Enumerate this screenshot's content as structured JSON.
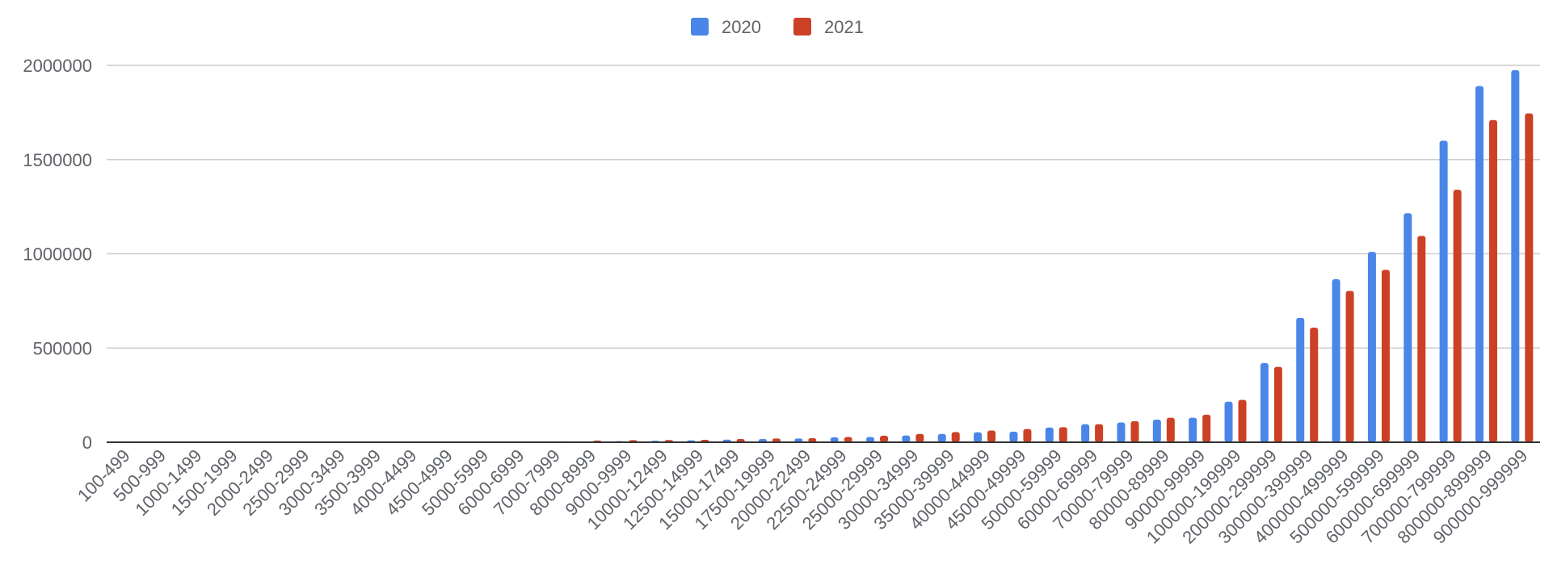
{
  "chart_data": {
    "type": "bar",
    "title": "",
    "xlabel": "",
    "ylabel": "",
    "ylim": [
      0,
      2000000
    ],
    "yticks": [
      0,
      500000,
      1000000,
      1500000,
      2000000
    ],
    "grid": true,
    "legend_position": "top-center",
    "categories": [
      "100-499",
      "500-999",
      "1000-1499",
      "1500-1999",
      "2000-2499",
      "2500-2999",
      "3000-3499",
      "3500-3999",
      "4000-4499",
      "4500-4999",
      "5000-5999",
      "6000-6999",
      "7000-7999",
      "8000-8999",
      "9000-9999",
      "10000-12499",
      "12500-14999",
      "15000-17499",
      "17500-19999",
      "20000-22499",
      "22500-24999",
      "25000-29999",
      "30000-34999",
      "35000-39999",
      "40000-44999",
      "45000-49999",
      "50000-59999",
      "60000-69999",
      "70000-79999",
      "80000-89999",
      "90000-99999",
      "100000-199999",
      "200000-299999",
      "300000-399999",
      "400000-499999",
      "500000-599999",
      "600000-699999",
      "700000-799999",
      "800000-899999",
      "900000-999999"
    ],
    "series": [
      {
        "name": "2020",
        "color": "#4a86e8",
        "values": [
          300,
          600,
          1000,
          1300,
          1600,
          1900,
          2200,
          2500,
          2800,
          3000,
          3500,
          4000,
          4500,
          5000,
          6000,
          8000,
          10000,
          14000,
          17000,
          20000,
          26000,
          28000,
          36000,
          44000,
          53000,
          56000,
          78000,
          96000,
          105000,
          120000,
          130000,
          215000,
          420000,
          660000,
          865000,
          1010000,
          1215000,
          1600000,
          1890000,
          1975000
        ]
      },
      {
        "name": "2021",
        "color": "#cc4125",
        "values": [
          300,
          600,
          1000,
          1300,
          1600,
          1900,
          2200,
          2500,
          2800,
          3000,
          3500,
          4500,
          5000,
          9000,
          11000,
          12000,
          13000,
          17000,
          20000,
          22000,
          28000,
          35000,
          44000,
          54000,
          62000,
          70000,
          80000,
          96000,
          112000,
          130000,
          146000,
          225000,
          400000,
          608000,
          803000,
          915000,
          1095000,
          1340000,
          1710000,
          1745000
        ]
      }
    ]
  }
}
